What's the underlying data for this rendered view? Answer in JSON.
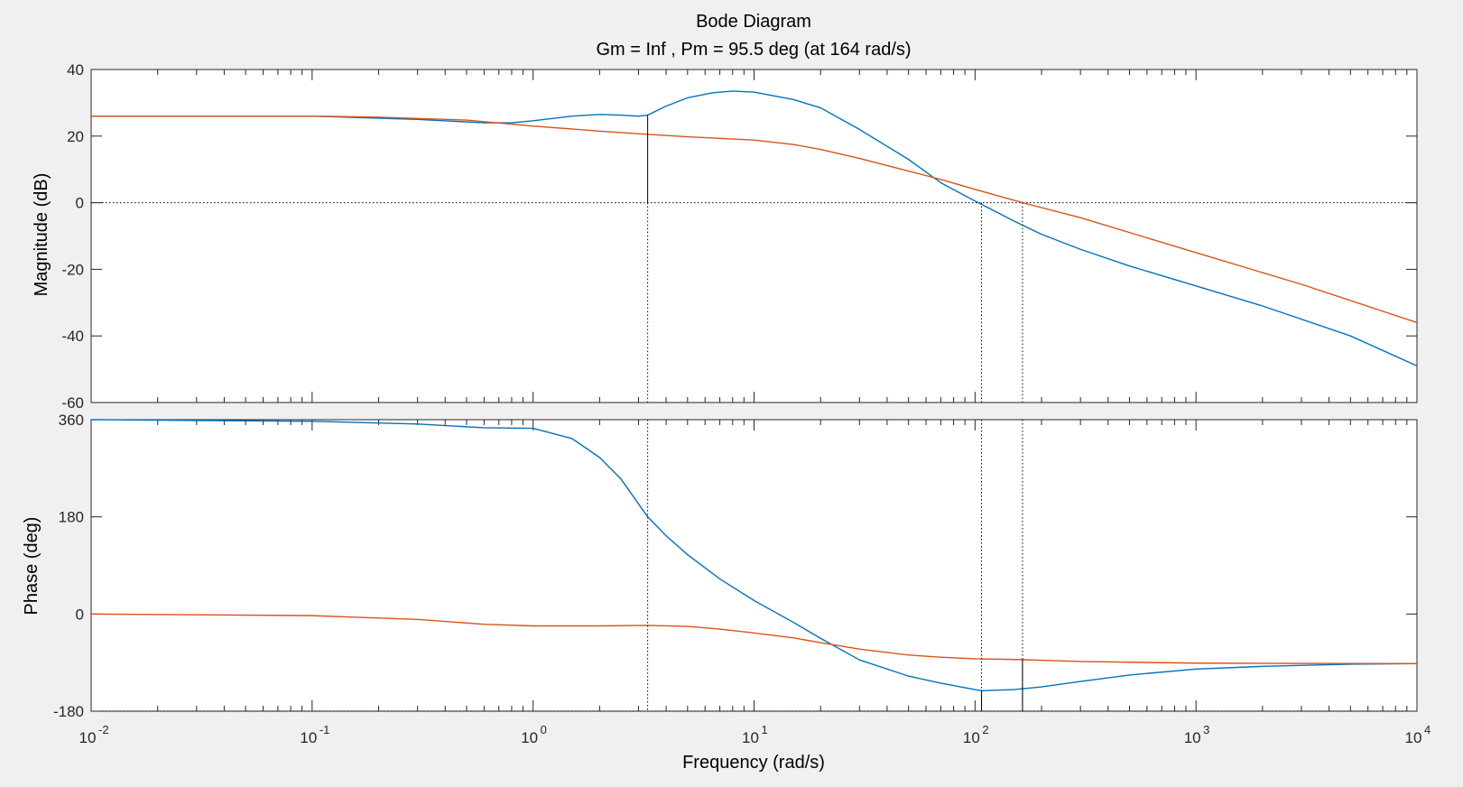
{
  "chart_data": {
    "type": "line",
    "title": "Bode Diagram",
    "subtitle": "Gm = Inf ,  Pm = 95.5 deg (at 164 rad/s)",
    "xlabel": "Frequency  (rad/s)",
    "x_scale": "log",
    "xlim": [
      0.01,
      10000
    ],
    "x_ticks": [
      {
        "base": "10",
        "exp": "-2"
      },
      {
        "base": "10",
        "exp": "-1"
      },
      {
        "base": "10",
        "exp": "0"
      },
      {
        "base": "10",
        "exp": "1"
      },
      {
        "base": "10",
        "exp": "2"
      },
      {
        "base": "10",
        "exp": "3"
      },
      {
        "base": "10",
        "exp": "4"
      }
    ],
    "colors": {
      "series1": "#0072BD",
      "series2": "#D95319",
      "marker": "#000000"
    },
    "magnitude": {
      "ylabel": "Magnitude (dB)",
      "ylim": [
        -60,
        40
      ],
      "yticks": [
        "40",
        "20",
        "0",
        "-20",
        "-40",
        "-60"
      ],
      "reference_line": 0,
      "series": [
        {
          "color": "#0072BD",
          "points": [
            [
              0.01,
              26
            ],
            [
              0.1,
              26
            ],
            [
              0.3,
              25
            ],
            [
              0.6,
              24
            ],
            [
              0.8,
              24
            ],
            [
              1,
              24.6
            ],
            [
              1.5,
              26
            ],
            [
              2,
              26.5
            ],
            [
              2.5,
              26.3
            ],
            [
              3,
              26
            ],
            [
              3.3,
              26.3
            ],
            [
              4,
              29
            ],
            [
              5,
              31.5
            ],
            [
              6.5,
              33
            ],
            [
              8,
              33.5
            ],
            [
              10,
              33.2
            ],
            [
              15,
              31
            ],
            [
              20,
              28.5
            ],
            [
              30,
              22
            ],
            [
              50,
              13
            ],
            [
              70,
              6
            ],
            [
              100,
              0.5
            ],
            [
              150,
              -5.5
            ],
            [
              200,
              -9.5
            ],
            [
              300,
              -14
            ],
            [
              500,
              -19
            ],
            [
              1000,
              -25
            ],
            [
              2000,
              -31
            ],
            [
              5000,
              -40
            ],
            [
              10000,
              -49
            ]
          ]
        },
        {
          "color": "#D95319",
          "points": [
            [
              0.01,
              26
            ],
            [
              0.1,
              26
            ],
            [
              0.2,
              25.7
            ],
            [
              0.5,
              24.8
            ],
            [
              1,
              23
            ],
            [
              2,
              21.5
            ],
            [
              3,
              20.7
            ],
            [
              5,
              19.8
            ],
            [
              10,
              18.8
            ],
            [
              15,
              17.5
            ],
            [
              20,
              16
            ],
            [
              30,
              13.3
            ],
            [
              50,
              9.5
            ],
            [
              70,
              7
            ],
            [
              100,
              4
            ],
            [
              164,
              0
            ],
            [
              300,
              -4.5
            ],
            [
              1000,
              -15
            ],
            [
              3000,
              -24.5
            ],
            [
              10000,
              -36
            ]
          ]
        }
      ]
    },
    "phase": {
      "ylabel": "Phase (deg)",
      "ylim": [
        -180,
        360
      ],
      "yticks": [
        "360",
        "180",
        "0",
        "-180"
      ],
      "reference_line": -180,
      "series": [
        {
          "color": "#0072BD",
          "points": [
            [
              0.01,
              360
            ],
            [
              0.1,
              357
            ],
            [
              0.3,
              352
            ],
            [
              0.6,
              345
            ],
            [
              1,
              344
            ],
            [
              1.5,
              325
            ],
            [
              2,
              290
            ],
            [
              2.5,
              250
            ],
            [
              3.3,
              180
            ],
            [
              4,
              145
            ],
            [
              5,
              110
            ],
            [
              7,
              65
            ],
            [
              10,
              25
            ],
            [
              15,
              -15
            ],
            [
              20,
              -45
            ],
            [
              30,
              -85
            ],
            [
              50,
              -115
            ],
            [
              70,
              -128
            ],
            [
              100,
              -140
            ],
            [
              107,
              -142
            ],
            [
              150,
              -140
            ],
            [
              200,
              -135
            ],
            [
              300,
              -125
            ],
            [
              500,
              -113
            ],
            [
              1000,
              -102
            ],
            [
              2000,
              -97
            ],
            [
              5000,
              -93
            ],
            [
              10000,
              -92
            ]
          ]
        },
        {
          "color": "#D95319",
          "points": [
            [
              0.01,
              0
            ],
            [
              0.1,
              -3
            ],
            [
              0.3,
              -10
            ],
            [
              0.6,
              -19
            ],
            [
              1,
              -22
            ],
            [
              2,
              -22
            ],
            [
              3.3,
              -21
            ],
            [
              5,
              -23
            ],
            [
              7,
              -28
            ],
            [
              10,
              -35
            ],
            [
              15,
              -44
            ],
            [
              20,
              -53
            ],
            [
              30,
              -65
            ],
            [
              50,
              -76
            ],
            [
              70,
              -80
            ],
            [
              100,
              -83
            ],
            [
              164,
              -84.5
            ],
            [
              300,
              -88
            ],
            [
              1000,
              -91
            ],
            [
              10000,
              -92
            ]
          ]
        }
      ]
    },
    "markers": {
      "frequencies": [
        3.3,
        107,
        164
      ],
      "magnitude_stems": [
        [
          3.3,
          26.3,
          0
        ]
      ],
      "phase_stems": [
        [
          107,
          -142,
          -180
        ],
        [
          164,
          -84.5,
          -180
        ]
      ]
    }
  }
}
